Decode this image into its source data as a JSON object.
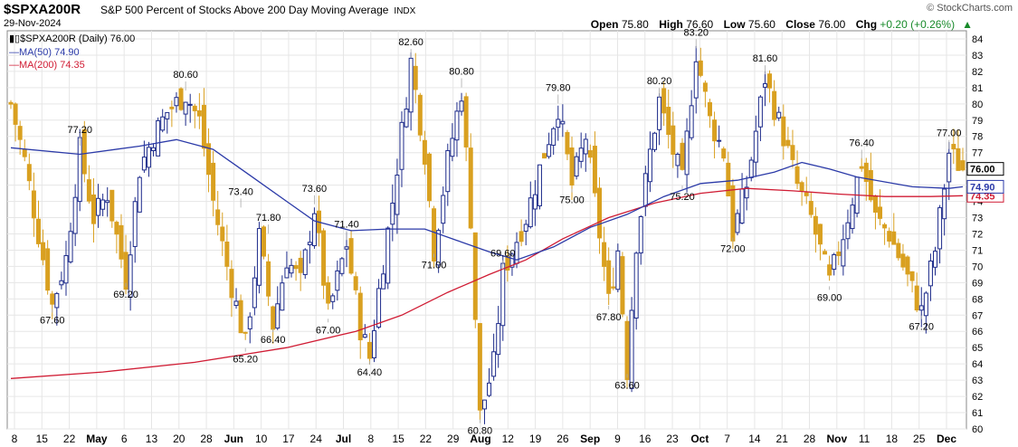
{
  "header": {
    "symbol": "$SPXA200R",
    "description": "S&P 500 Percent of Stocks Above 200 Day Moving Average",
    "exchange": "INDX",
    "date": "29-Nov-2024",
    "brand": "© StockCharts.com",
    "open_label": "Open",
    "open": "75.80",
    "high_label": "High",
    "high": "76.60",
    "low_label": "Low",
    "low": "75.60",
    "close_label": "Close",
    "close": "76.00",
    "chg_label": "Chg",
    "chg": "+0.20 (+0.26%)"
  },
  "legend": {
    "price": "$SPXA200R (Daily) 76.00",
    "ma50": "MA(50) 74.90",
    "ma200": "MA(200) 74.35"
  },
  "colors": {
    "up": "#1c2a8a",
    "down": "#d9a020",
    "ma50": "#2b3aa8",
    "ma200": "#d01c34",
    "grid": "#e6e6e6"
  },
  "chart_data": {
    "type": "candlestick",
    "ylim": [
      60,
      84.5
    ],
    "yticks": [
      60,
      61,
      62,
      63,
      64,
      65,
      66,
      67,
      68,
      69,
      70,
      71,
      72,
      73,
      74,
      75,
      76,
      77,
      78,
      79,
      80,
      81,
      82,
      83,
      84
    ],
    "price_tag": "76.00",
    "ma50_tag": "74.90",
    "ma200_tag": "74.35",
    "x_tick_labels": [
      "8",
      "15",
      "22",
      "May",
      "6",
      "13",
      "20",
      "28",
      "Jun",
      "10",
      "17",
      "24",
      "Jul",
      "8",
      "15",
      "22",
      "29",
      "Aug",
      "12",
      "19",
      "26",
      "Sep",
      "9",
      "16",
      "23",
      "Oct",
      "7",
      "14",
      "21",
      "28",
      "Nov",
      "11",
      "18",
      "25",
      "Dec"
    ],
    "x_tick_bold": [
      "May",
      "Jun",
      "Jul",
      "Aug",
      "Sep",
      "Oct",
      "Nov",
      "Dec"
    ],
    "annotations": [
      {
        "label": "67.60",
        "day": 9,
        "value": 67.6,
        "pos": "below"
      },
      {
        "label": "77.20",
        "day": 15,
        "value": 77.2,
        "pos": "above"
      },
      {
        "label": "69.20",
        "day": 25,
        "value": 69.2,
        "pos": "below"
      },
      {
        "label": "80.60",
        "day": 38,
        "value": 80.6,
        "pos": "above"
      },
      {
        "label": "73.40",
        "day": 50,
        "value": 73.4,
        "pos": "above"
      },
      {
        "label": "65.20",
        "day": 51,
        "value": 65.2,
        "pos": "below"
      },
      {
        "label": "71.80",
        "day": 56,
        "value": 71.8,
        "pos": "above"
      },
      {
        "label": "66.40",
        "day": 57,
        "value": 66.4,
        "pos": "below"
      },
      {
        "label": "73.60",
        "day": 66,
        "value": 73.6,
        "pos": "above"
      },
      {
        "label": "67.00",
        "day": 69,
        "value": 67.0,
        "pos": "below"
      },
      {
        "label": "71.40",
        "day": 73,
        "value": 71.4,
        "pos": "above"
      },
      {
        "label": "64.40",
        "day": 78,
        "value": 64.4,
        "pos": "below"
      },
      {
        "label": "82.60",
        "day": 87,
        "value": 82.6,
        "pos": "above"
      },
      {
        "label": "71.00",
        "day": 92,
        "value": 71.0,
        "pos": "below"
      },
      {
        "label": "80.80",
        "day": 98,
        "value": 80.8,
        "pos": "above"
      },
      {
        "label": "60.80",
        "day": 102,
        "value": 60.8,
        "pos": "below"
      },
      {
        "label": "69.60",
        "day": 107,
        "value": 69.6,
        "pos": "above"
      },
      {
        "label": "79.80",
        "day": 119,
        "value": 79.8,
        "pos": "above"
      },
      {
        "label": "75.00",
        "day": 122,
        "value": 75.0,
        "pos": "below"
      },
      {
        "label": "67.80",
        "day": 130,
        "value": 67.8,
        "pos": "below"
      },
      {
        "label": "63.60",
        "day": 134,
        "value": 63.6,
        "pos": "below"
      },
      {
        "label": "80.20",
        "day": 141,
        "value": 80.2,
        "pos": "above"
      },
      {
        "label": "75.20",
        "day": 146,
        "value": 75.2,
        "pos": "below"
      },
      {
        "label": "83.20",
        "day": 149,
        "value": 83.2,
        "pos": "above"
      },
      {
        "label": "72.00",
        "day": 157,
        "value": 72.0,
        "pos": "below"
      },
      {
        "label": "81.60",
        "day": 164,
        "value": 81.6,
        "pos": "above"
      },
      {
        "label": "69.00",
        "day": 178,
        "value": 69.0,
        "pos": "below"
      },
      {
        "label": "76.40",
        "day": 185,
        "value": 76.4,
        "pos": "above"
      },
      {
        "label": "67.20",
        "day": 198,
        "value": 67.2,
        "pos": "below"
      },
      {
        "label": "77.00",
        "day": 204,
        "value": 77.0,
        "pos": "above"
      }
    ],
    "anchors": [
      [
        0,
        80
      ],
      [
        3,
        76.5
      ],
      [
        6,
        72
      ],
      [
        9,
        67.6
      ],
      [
        12,
        70.5
      ],
      [
        15,
        77.2
      ],
      [
        18,
        73
      ],
      [
        21,
        74.5
      ],
      [
        25,
        69.2
      ],
      [
        28,
        76
      ],
      [
        31,
        78
      ],
      [
        34,
        79.5
      ],
      [
        38,
        80.6
      ],
      [
        41,
        79
      ],
      [
        44,
        74
      ],
      [
        47,
        70
      ],
      [
        51,
        65.2
      ],
      [
        54,
        71.8
      ],
      [
        57,
        66.4
      ],
      [
        60,
        70.5
      ],
      [
        63,
        69
      ],
      [
        66,
        73.6
      ],
      [
        69,
        67
      ],
      [
        73,
        71.4
      ],
      [
        76,
        66.2
      ],
      [
        78,
        64.4
      ],
      [
        80,
        68.5
      ],
      [
        83,
        74
      ],
      [
        87,
        82.6
      ],
      [
        90,
        77
      ],
      [
        92,
        71
      ],
      [
        95,
        76.5
      ],
      [
        98,
        80.8
      ],
      [
        100,
        73
      ],
      [
        102,
        60.8
      ],
      [
        105,
        64
      ],
      [
        107,
        69.6
      ],
      [
        109,
        71
      ],
      [
        112,
        73
      ],
      [
        116,
        77
      ],
      [
        119,
        79.8
      ],
      [
        122,
        75
      ],
      [
        125,
        78
      ],
      [
        128,
        72
      ],
      [
        130,
        67.8
      ],
      [
        132,
        71
      ],
      [
        134,
        63.6
      ],
      [
        136,
        71.5
      ],
      [
        139,
        77
      ],
      [
        141,
        80.2
      ],
      [
        143,
        78
      ],
      [
        146,
        75.2
      ],
      [
        149,
        83.2
      ],
      [
        152,
        79
      ],
      [
        155,
        77
      ],
      [
        157,
        72
      ],
      [
        160,
        75
      ],
      [
        164,
        81.6
      ],
      [
        168,
        78
      ],
      [
        171,
        75
      ],
      [
        174,
        73
      ],
      [
        178,
        69
      ],
      [
        181,
        72
      ],
      [
        185,
        76.4
      ],
      [
        188,
        73
      ],
      [
        191,
        72
      ],
      [
        194,
        70
      ],
      [
        198,
        67.2
      ],
      [
        201,
        71
      ],
      [
        204,
        77
      ],
      [
        207,
        76
      ]
    ],
    "ma50_points": [
      [
        0,
        77.3
      ],
      [
        15,
        76.9
      ],
      [
        28,
        77.4
      ],
      [
        36,
        77.8
      ],
      [
        44,
        77.2
      ],
      [
        52,
        75.6
      ],
      [
        60,
        74
      ],
      [
        66,
        72.8
      ],
      [
        74,
        72.2
      ],
      [
        82,
        72.3
      ],
      [
        90,
        72.3
      ],
      [
        97,
        71.6
      ],
      [
        104,
        70.9
      ],
      [
        110,
        70.4
      ],
      [
        118,
        71.2
      ],
      [
        126,
        72.4
      ],
      [
        134,
        73.2
      ],
      [
        142,
        74.3
      ],
      [
        150,
        75.1
      ],
      [
        158,
        75.3
      ],
      [
        166,
        75.8
      ],
      [
        172,
        76.4
      ],
      [
        178,
        76
      ],
      [
        184,
        75.5
      ],
      [
        190,
        75.2
      ],
      [
        196,
        74.9
      ],
      [
        204,
        74.8
      ],
      [
        207,
        74.9
      ]
    ],
    "ma200_points": [
      [
        0,
        63.1
      ],
      [
        20,
        63.5
      ],
      [
        40,
        64.1
      ],
      [
        60,
        65
      ],
      [
        75,
        66
      ],
      [
        85,
        67
      ],
      [
        95,
        68.4
      ],
      [
        104,
        69.5
      ],
      [
        112,
        70.4
      ],
      [
        120,
        71.7
      ],
      [
        130,
        73
      ],
      [
        140,
        73.9
      ],
      [
        150,
        74.5
      ],
      [
        160,
        74.8
      ],
      [
        170,
        74.65
      ],
      [
        180,
        74.45
      ],
      [
        190,
        74.3
      ],
      [
        200,
        74.3
      ],
      [
        207,
        74.35
      ]
    ]
  }
}
